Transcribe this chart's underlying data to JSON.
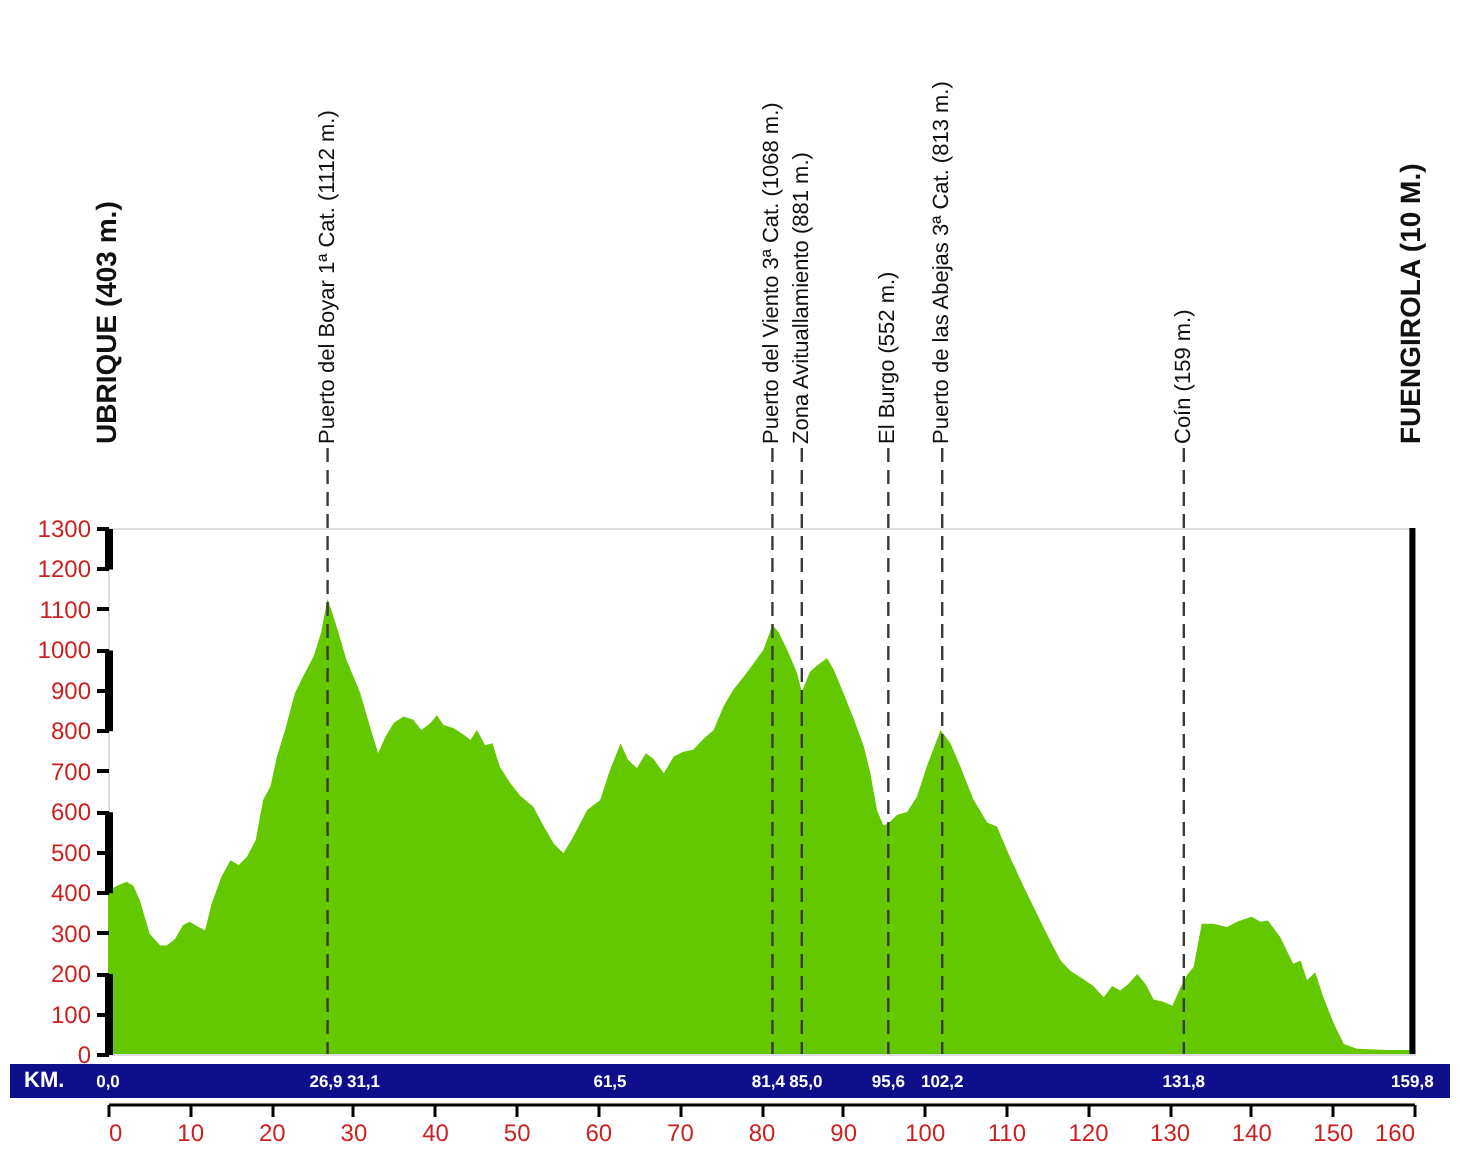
{
  "chart_data": {
    "type": "area",
    "color": "#64c800",
    "x": [
      0,
      1.1,
      2.3,
      3.1,
      3.9,
      5.1,
      6.4,
      7.2,
      8.2,
      9.2,
      10.0,
      11.1,
      11.9,
      12.7,
      13.9,
      15.0,
      16.0,
      17.0,
      18.1,
      19.0,
      19.9,
      20.7,
      21.7,
      22.9,
      23.9,
      25.2,
      26.1,
      26.9,
      28.0,
      29.2,
      30.9,
      32.1,
      33.1,
      34.0,
      35.0,
      36.2,
      37.4,
      38.4,
      39.5,
      40.3,
      41.1,
      42.3,
      43.5,
      44.4,
      45.2,
      46.2,
      47.1,
      48.0,
      49.3,
      50.5,
      52.1,
      53.4,
      54.6,
      55.8,
      57.0,
      58.7,
      60.3,
      61.5,
      62.8,
      63.7,
      64.8,
      65.9,
      66.8,
      68.1,
      69.3,
      70.5,
      71.7,
      73.0,
      74.2,
      75.4,
      76.6,
      77.9,
      79.1,
      80.3,
      81.4,
      82.2,
      83.2,
      84.4,
      85.0,
      86.0,
      86.9,
      88.1,
      88.9,
      90.1,
      91.4,
      92.6,
      93.4,
      94.2,
      95.0,
      95.6,
      96.7,
      97.9,
      99.1,
      100.3,
      102.0,
      103.2,
      104.4,
      106.0,
      107.7,
      108.9,
      110.5,
      112.2,
      114.2,
      115.4,
      116.7,
      117.9,
      119.5,
      120.7,
      122.0,
      123.0,
      124.0,
      125.0,
      126.1,
      127.1,
      128.1,
      129.3,
      130.4,
      131.4,
      132.2,
      133.0,
      134.0,
      135.4,
      137.1,
      138.3,
      140.1,
      141.2,
      142.1,
      143.6,
      145.2,
      146.1,
      146.9,
      147.9,
      148.9,
      150.2,
      151.4,
      153.0,
      156.7,
      159.8
    ],
    "values": [
      403,
      416,
      426,
      416,
      380,
      297,
      268,
      268,
      284,
      319,
      327,
      314,
      306,
      372,
      438,
      479,
      467,
      487,
      529,
      628,
      661,
      735,
      801,
      892,
      933,
      983,
      1041,
      1125,
      1057,
      975,
      892,
      809,
      743,
      785,
      818,
      834,
      826,
      801,
      818,
      837,
      813,
      806,
      790,
      776,
      801,
      763,
      768,
      710,
      669,
      638,
      611,
      562,
      520,
      496,
      537,
      603,
      628,
      702,
      768,
      727,
      707,
      743,
      730,
      694,
      735,
      747,
      752,
      780,
      801,
      859,
      900,
      933,
      966,
      999,
      1060,
      1041,
      999,
      942,
      895,
      945,
      961,
      978,
      950,
      892,
      826,
      760,
      694,
      603,
      565,
      570,
      591,
      598,
      636,
      710,
      801,
      768,
      712,
      630,
      572,
      562,
      487,
      413,
      330,
      281,
      231,
      206,
      185,
      168,
      140,
      168,
      157,
      173,
      198,
      173,
      135,
      129,
      119,
      165,
      195,
      215,
      322,
      322,
      314,
      327,
      339,
      327,
      330,
      289,
      223,
      231,
      182,
      202,
      140,
      74,
      25,
      13,
      10,
      10
    ],
    "xlim": [
      0,
      160
    ],
    "xticks": [
      0,
      10,
      20,
      30,
      40,
      50,
      60,
      70,
      80,
      90,
      100,
      110,
      120,
      130,
      140,
      150,
      160
    ],
    "ylim": [
      0,
      1300
    ],
    "yticks": [
      0,
      100,
      200,
      300,
      400,
      500,
      600,
      700,
      800,
      900,
      1000,
      1100,
      1200,
      1300
    ],
    "x2label": "KM.",
    "x2lim": [
      0,
      160
    ],
    "x2ticks": [
      {
        "value": 0,
        "label": "0,0"
      },
      {
        "value": 26.9,
        "label": "26,9"
      },
      {
        "value": 31.1,
        "label": "31,1"
      },
      {
        "value": 61.5,
        "label": "61,5"
      },
      {
        "value": 81.4,
        "label": "81,4"
      },
      {
        "value": 85.0,
        "label": "85,0"
      },
      {
        "value": 95.6,
        "label": "95,6"
      },
      {
        "value": 102.2,
        "label": "102,2"
      },
      {
        "value": 131.8,
        "label": "131,8"
      },
      {
        "value": 159.8,
        "label": "159,8"
      }
    ],
    "ref_lines": [
      {
        "axis": "x",
        "value": 26.9,
        "label": "Puerto del Boyar 1ª Cat. (1112 m.)",
        "line_style": "dashed",
        "color": "#3a3a3a"
      },
      {
        "axis": "x",
        "value": 81.4,
        "label": "Puerto del Viento 3ª Cat. (1068 m.)",
        "line_style": "dashed",
        "color": "#3a3a3a"
      },
      {
        "axis": "x",
        "value": 85.0,
        "label": "Zona Avituallamiento (881 m.)",
        "line_style": "dashed",
        "color": "#3a3a3a"
      },
      {
        "axis": "x",
        "value": 95.6,
        "label": "El Burgo (552 m.)",
        "line_style": "dashed",
        "color": "#3a3a3a"
      },
      {
        "axis": "x",
        "value": 102.2,
        "label": "Puerto de las Abejas 3ª Cat. (813 m.)",
        "line_style": "dashed",
        "color": "#3a3a3a"
      },
      {
        "axis": "x",
        "value": 131.8,
        "label": "Coín (159 m.)",
        "line_style": "dashed",
        "color": "#3a3a3a"
      },
      {
        "axis": "x",
        "value": 159.8,
        "line_style": "solid",
        "color": "#000000"
      }
    ],
    "annotations": [
      "UBRIQUE (403 m.)",
      "FUENGIROLA (10 M.)"
    ]
  }
}
